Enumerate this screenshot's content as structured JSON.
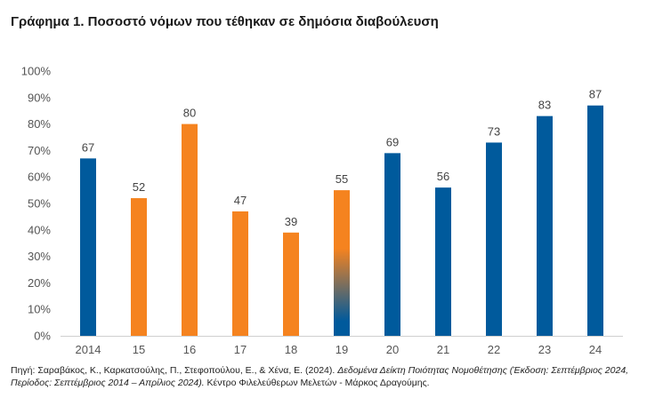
{
  "title": "Γράφημα 1. Ποσοστό νόμων που τέθηκαν σε δημόσια διαβούλευση",
  "colors": {
    "blue": "#005a9c",
    "orange": "#f5831f",
    "axis_text": "#555555",
    "label_text": "#444444",
    "grid": "#e6e6e6"
  },
  "chart_data": {
    "type": "bar",
    "categories": [
      "2014",
      "15",
      "16",
      "17",
      "18",
      "19",
      "20",
      "21",
      "22",
      "23",
      "24"
    ],
    "values": [
      67,
      52,
      80,
      47,
      39,
      55,
      69,
      56,
      73,
      83,
      87
    ],
    "bar_colors": [
      "blue",
      "orange",
      "orange",
      "orange",
      "orange",
      "orange-to-blue gradient",
      "blue",
      "blue",
      "blue",
      "blue",
      "blue"
    ],
    "ylim": [
      0,
      100
    ],
    "yticks": [
      "0%",
      "10%",
      "20%",
      "30%",
      "40%",
      "50%",
      "60%",
      "70%",
      "80%",
      "90%",
      "100%"
    ],
    "grid": false,
    "xlabel": "",
    "ylabel": ""
  },
  "source": {
    "prefix": "Πηγή: Σαραβάκος, Κ., Καρκατσούλης, Π., Στεφοπούλου, Ε., & Χένα, Ε. (2024). ",
    "italic": "Δεδομένα Δείκτη Ποιότητας Νομοθέτησης (Έκδοση: Σεπτέμβριος 2024, Περίοδος: Σεπτέμβριος 2014 – Απρίλιος 2024).",
    "suffix": " Κέντρο Φιλελεύθερων Μελετών - Μάρκος Δραγούμης."
  }
}
